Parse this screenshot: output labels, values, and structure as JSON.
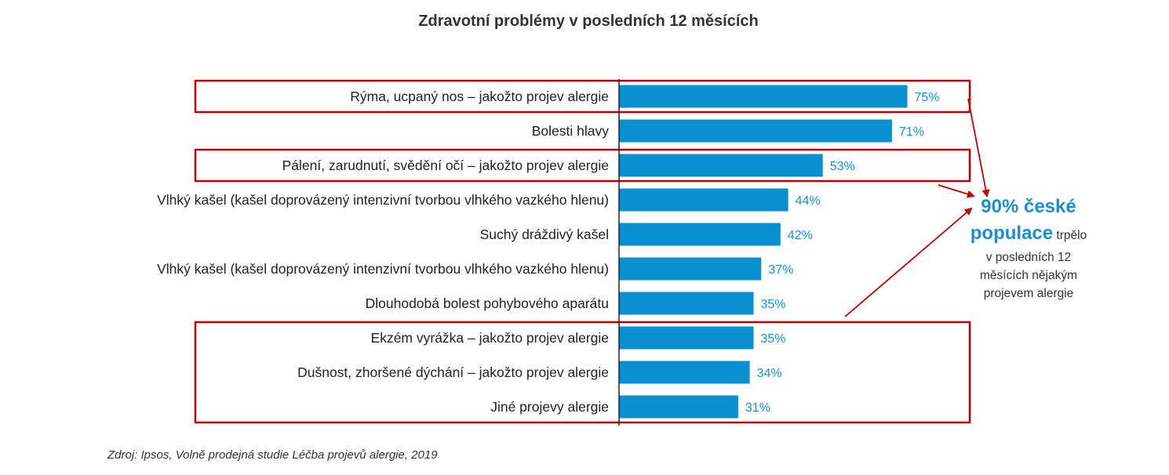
{
  "chart_data": {
    "type": "bar",
    "orientation": "horizontal",
    "title": "Zdravotní problémy v posledních 12 měsících",
    "categories": [
      "Rýma, ucpaný nos – jakožto projev alergie",
      "Bolesti hlavy",
      "Pálení, zarudnutí, svědění očí – jakožto projev alergie",
      "Vlhký kašel (kašel doprovázený intenzivní tvorbou vlhkého vazkého hlenu)",
      "Suchý dráždivý kašel",
      "Vlhký kašel (kašel doprovázený intenzivní tvorbou vlhkého vazkého hlenu)",
      "Dlouhodobá bolest pohybového aparátu",
      "Ekzém vyrážka – jakožto projev alergie",
      "Dušnost, zhoršené dýchání – jakožto projev alergie",
      "Jiné projevy alergie"
    ],
    "values": [
      75,
      71,
      53,
      44,
      42,
      37,
      35,
      35,
      34,
      31
    ],
    "value_labels": [
      "75%",
      "71%",
      "53%",
      "44%",
      "42%",
      "37%",
      "35%",
      "35%",
      "34%",
      "31%"
    ],
    "xlim": [
      0,
      100
    ],
    "highlighted_groups": [
      [
        0
      ],
      [
        2
      ],
      [
        7,
        8,
        9
      ]
    ],
    "source": "Zdroj: Ipsos, Volně prodejná studie Léčba projevů alergie, 2019",
    "callout": {
      "line1": "90% české",
      "line2_big": "populace",
      "line2_rest": " trpělo",
      "line3": "v posledních 12",
      "line4": "měsících nějakým",
      "line5": "projevem alergie"
    }
  },
  "colors": {
    "bar": "#0a8fd1",
    "value_text": "#1a8fcf",
    "highlight": "#c00000",
    "callout_accent": "#1a8fcf"
  }
}
